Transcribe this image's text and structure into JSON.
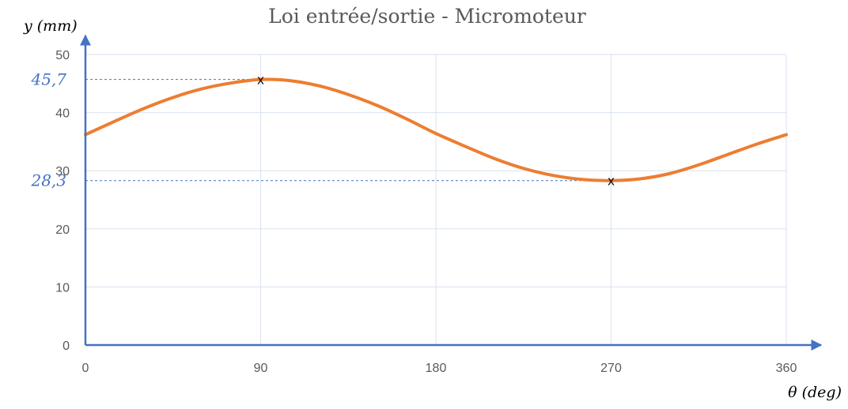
{
  "chart_data": {
    "type": "line",
    "title": "Loi entrée/sortie - Micromoteur",
    "xlabel": "θ (deg)",
    "ylabel": "y (mm)",
    "xlim": [
      0,
      360
    ],
    "ylim": [
      0,
      50
    ],
    "xticks": [
      0,
      90,
      180,
      270,
      360
    ],
    "yticks": [
      0,
      10,
      20,
      30,
      40,
      50
    ],
    "grid": true,
    "series": [
      {
        "x": [
          0,
          15,
          30,
          45,
          60,
          75,
          90,
          105,
          120,
          135,
          150,
          165,
          180,
          195,
          210,
          225,
          240,
          255,
          270,
          285,
          300,
          315,
          330,
          345,
          360
        ],
        "y": [
          36.2,
          38.5,
          40.7,
          42.6,
          44.1,
          45.1,
          45.7,
          45.5,
          44.6,
          43.1,
          41.2,
          38.9,
          36.4,
          34.2,
          32.1,
          30.4,
          29.2,
          28.5,
          28.3,
          28.6,
          29.5,
          31.0,
          32.8,
          34.6,
          36.2
        ],
        "color": "#ED7D31"
      }
    ],
    "annotations": [
      {
        "label": "45,7",
        "x": 90,
        "y": 45.7,
        "marker": "x"
      },
      {
        "label": "28,3",
        "x": 270,
        "y": 28.3,
        "marker": "x"
      }
    ],
    "colors": {
      "axis": "#4472C4",
      "grid": "#D9E2F0",
      "line": "#ED7D31",
      "annotation": "#4472C4"
    }
  }
}
